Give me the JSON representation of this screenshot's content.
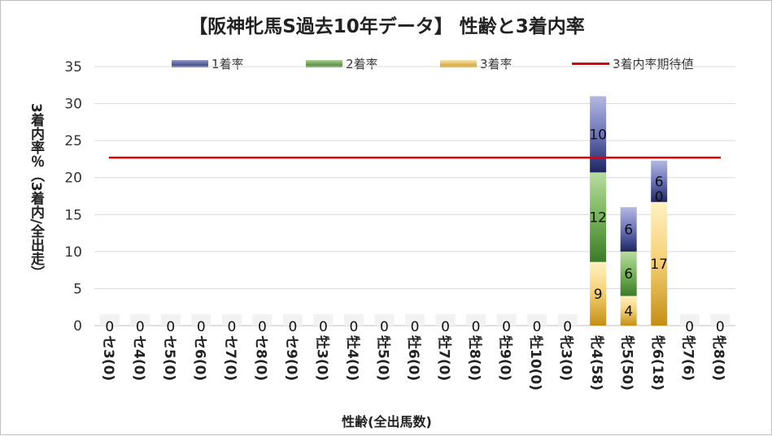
{
  "chart_data": {
    "type": "bar",
    "stacked": true,
    "title": "【阪神牝馬S過去10年データ】 性齢と3着内率",
    "xlabel": "性齢(全出馬数)",
    "ylabel": "3着内率％（3着内/全出走）",
    "ylim": [
      0,
      35
    ],
    "yticks": [
      0,
      5,
      10,
      15,
      20,
      25,
      30,
      35
    ],
    "grid": true,
    "legend_position": "top",
    "categories": [
      "セ3(0)",
      "セ4(0)",
      "セ5(0)",
      "セ6(0)",
      "セ7(0)",
      "セ8(0)",
      "セ9(0)",
      "牡3(0)",
      "牡4(0)",
      "牡5(0)",
      "牡6(0)",
      "牡7(0)",
      "牡8(0)",
      "牡9(0)",
      "牡10(0)",
      "牝3(0)",
      "牝4(58)",
      "牝5(50)",
      "牝6(18)",
      "牝7(6)",
      "牝8(0)"
    ],
    "series": [
      {
        "name": "3着率",
        "color": "#d6a52a",
        "values": [
          0,
          0,
          0,
          0,
          0,
          0,
          0,
          0,
          0,
          0,
          0,
          0,
          0,
          0,
          0,
          0,
          8.6,
          4.0,
          16.7,
          0,
          0
        ],
        "labels": [
          "0",
          "0",
          "0",
          "0",
          "0",
          "0",
          "0",
          "0",
          "0",
          "0",
          "0",
          "0",
          "0",
          "0",
          "0",
          "0",
          "9",
          "4",
          "17",
          "0",
          "0"
        ]
      },
      {
        "name": "2着率",
        "color": "#6aa84f",
        "values": [
          0,
          0,
          0,
          0,
          0,
          0,
          0,
          0,
          0,
          0,
          0,
          0,
          0,
          0,
          0,
          0,
          12.1,
          6.0,
          0,
          0,
          0
        ],
        "labels": [
          "",
          "",
          "",
          "",
          "",
          "",
          "",
          "",
          "",
          "",
          "",
          "",
          "",
          "",
          "",
          "",
          "12",
          "6",
          "",
          "",
          ""
        ]
      },
      {
        "name": "1着率",
        "color": "#5b63a8",
        "values": [
          0,
          0,
          0,
          0,
          0,
          0,
          0,
          0,
          0,
          0,
          0,
          0,
          0,
          0,
          0,
          0,
          10.3,
          6.0,
          5.6,
          0,
          0
        ],
        "labels": [
          "",
          "",
          "",
          "",
          "",
          "",
          "",
          "",
          "",
          "",
          "",
          "",
          "",
          "",
          "",
          "",
          "10",
          "6",
          "6",
          "",
          ""
        ]
      }
    ],
    "extra_labels": [
      {
        "category": "牝6(18)",
        "text": "0"
      }
    ],
    "reference_line": {
      "name": "3着内率期待値",
      "value": 22.7,
      "color": "#e00000"
    }
  }
}
